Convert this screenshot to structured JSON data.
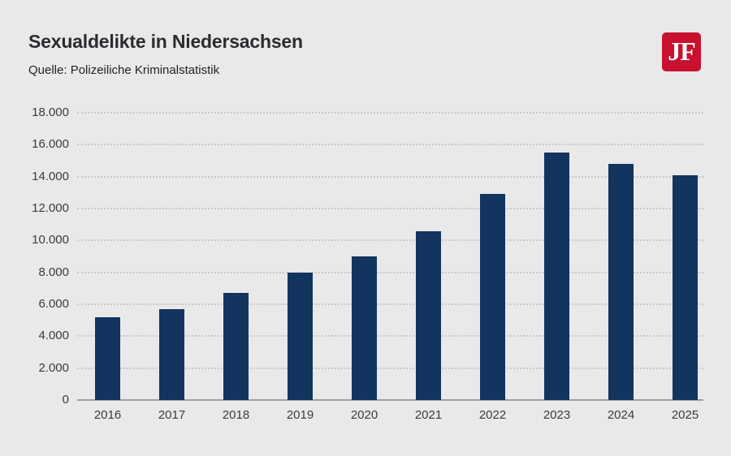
{
  "header": {
    "title": "Sexualdelikte in Niedersachsen",
    "source": "Quelle: Polizeiliche Kriminalstatistik",
    "logo_text": "JF",
    "logo_color": "#c8112f"
  },
  "chart_data": {
    "type": "bar",
    "title": "Sexualdelikte in Niedersachsen",
    "subtitle": "Quelle: Polizeiliche Kriminalstatistik",
    "xlabel": "",
    "ylabel": "",
    "categories": [
      "2016",
      "2017",
      "2018",
      "2019",
      "2020",
      "2021",
      "2022",
      "2023",
      "2024",
      "2025"
    ],
    "values": [
      5200,
      5700,
      6700,
      8000,
      9000,
      10600,
      12900,
      15500,
      14800,
      14100
    ],
    "ylim": [
      0,
      18000
    ],
    "ytick_step": 2000,
    "ytick_labels": [
      "0",
      "2.000",
      "4.000",
      "6.000",
      "8.000",
      "10.000",
      "12.000",
      "14.000",
      "16.000",
      "18.000"
    ],
    "grid": true,
    "legend": "none",
    "bar_color": "#13345e",
    "background_color": "#e9e9e9",
    "gridline_color": "#c8c8c8",
    "axis_line_color": "#a0a0a0",
    "tick_label_color": "#3b3b3b"
  }
}
